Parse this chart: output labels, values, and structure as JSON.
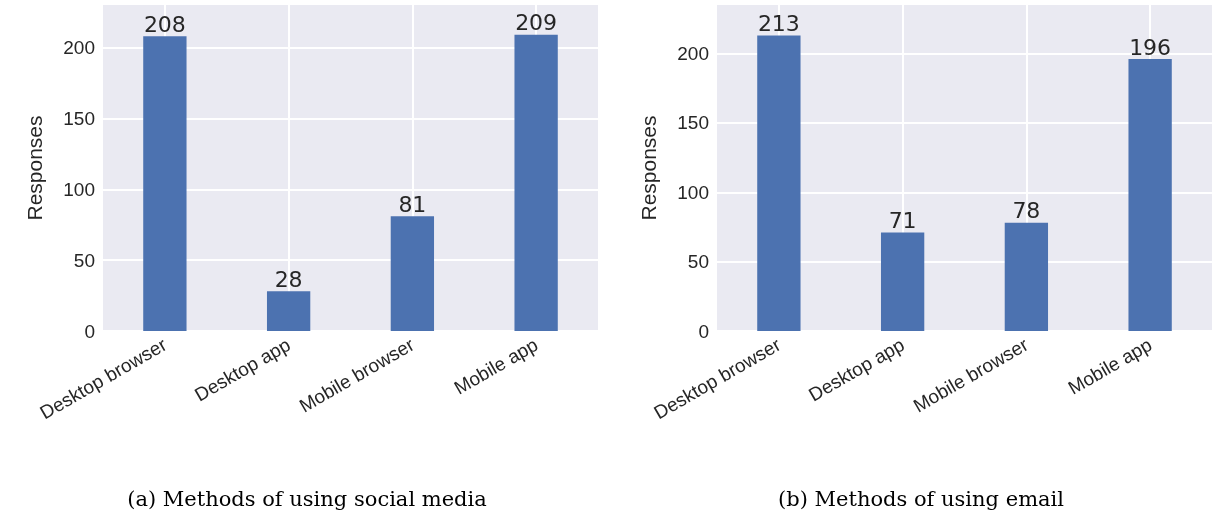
{
  "chart_data": [
    {
      "type": "bar",
      "title": "(a) Methods of using social media",
      "ylabel": "Responses",
      "categories": [
        "Desktop browser",
        "Desktop app",
        "Mobile browser",
        "Mobile app"
      ],
      "values": [
        208,
        28,
        81,
        209
      ],
      "color": "#4c72b0",
      "ylim": [
        0,
        230
      ],
      "yticks": [
        0,
        50,
        100,
        150,
        200
      ],
      "grid": true,
      "data_labels": true
    },
    {
      "type": "bar",
      "title": "(b) Methods of using email",
      "ylabel": "Responses",
      "categories": [
        "Desktop browser",
        "Desktop app",
        "Mobile browser",
        "Mobile app"
      ],
      "values": [
        213,
        71,
        78,
        196
      ],
      "color": "#4c72b0",
      "ylim": [
        0,
        235
      ],
      "yticks": [
        0,
        50,
        100,
        150,
        200
      ],
      "grid": true,
      "data_labels": true
    }
  ]
}
